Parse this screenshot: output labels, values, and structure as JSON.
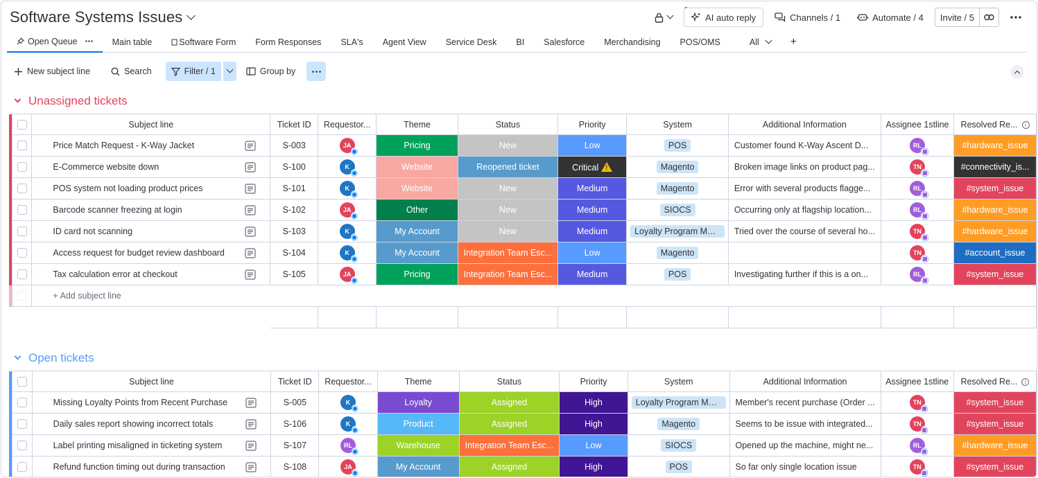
{
  "board": {
    "title": "Software Systems Issues"
  },
  "top_actions": {
    "ai_auto_reply": "AI auto reply",
    "channels": "Channels / 1",
    "automate": "Automate / 4",
    "invite": "Invite / 5"
  },
  "tabs": [
    {
      "label": "Open Queue",
      "active": true
    },
    {
      "label": "Main table"
    },
    {
      "label": "Software Form"
    },
    {
      "label": "Form Responses"
    },
    {
      "label": "SLA's"
    },
    {
      "label": "Agent View"
    },
    {
      "label": "Service Desk"
    },
    {
      "label": "BI"
    },
    {
      "label": "Salesforce"
    },
    {
      "label": "Merchandising"
    },
    {
      "label": "POS/OMS"
    },
    {
      "label": "All"
    }
  ],
  "toolbar": {
    "new_item": "New subject line",
    "search": "Search",
    "filter": "Filter / 1",
    "group_by": "Group by"
  },
  "columns": [
    "Subject line",
    "Ticket ID",
    "Requestor...",
    "Theme",
    "Status",
    "Priority",
    "System",
    "Additional Information",
    "Assignee 1stline",
    "Resolved Re..."
  ],
  "colors": {
    "Pricing": "#00a25b",
    "Website": "#f9a8a0",
    "Other": "#037f4c",
    "My Account": "#579bcc",
    "Loyalty": "#784bd1",
    "Product": "#56b9f7",
    "Warehouse": "#9cd326",
    "New": "#c4c4c4",
    "Reopened ticket": "#579bcc",
    "Integration Team Esc...": "#fd6f3b",
    "Assigned": "#9cd326",
    "Low": "#579bff",
    "Critical": "#333333",
    "Medium": "#5559df",
    "High": "#401694",
    "#hardware_issue": "#ff9c24",
    "#connectivity_is...": "#333333",
    "#system_issue": "#e2445c",
    "#account_issue": "#1f6dc2"
  },
  "groups": [
    {
      "title": "Unassigned tickets",
      "color": "#e2445c",
      "add_label": "+ Add subject line",
      "rows": [
        {
          "subject": "Price Match Request - K-Way Jacket",
          "id": "S-003",
          "req": "JA",
          "req_color": "#e2445c",
          "theme": "Pricing",
          "status": "New",
          "priority": "Low",
          "system": "POS",
          "info": "Customer found K-Way Ascent D...",
          "assignee": "RL",
          "as_color": "#a25ddc",
          "resolved": "#hardware_issue"
        },
        {
          "subject": "E-Commerce website down",
          "id": "S-100",
          "req": "K",
          "req_color": "#1f76c2",
          "theme": "Website",
          "status": "Reopened ticket",
          "priority": "Critical",
          "system": "Magento",
          "info": "Broken image links on product pag...",
          "assignee": "TN",
          "as_color": "#e2445c",
          "resolved": "#connectivity_is..."
        },
        {
          "subject": "POS system not loading product prices",
          "id": "S-101",
          "req": "K",
          "req_color": "#1f76c2",
          "theme": "Website",
          "status": "New",
          "priority": "Medium",
          "system": "Magento",
          "info": "Error with several products flagge...",
          "assignee": "RL",
          "as_color": "#a25ddc",
          "resolved": "#system_issue"
        },
        {
          "subject": "Barcode scanner freezing at login",
          "id": "S-102",
          "req": "JA",
          "req_color": "#e2445c",
          "theme": "Other",
          "status": "New",
          "priority": "Medium",
          "system": "SIOCS",
          "info": "Occurring only at flagship location...",
          "assignee": "RL",
          "as_color": "#a25ddc",
          "resolved": "#hardware_issue"
        },
        {
          "subject": "ID card not scanning",
          "id": "S-103",
          "req": "K",
          "req_color": "#1f76c2",
          "theme": "My Account",
          "status": "New",
          "priority": "Medium",
          "system": "Loyalty Program Man...",
          "info": "Tried over the course of several ho...",
          "assignee": "TN",
          "as_color": "#e2445c",
          "resolved": "#hardware_issue"
        },
        {
          "subject": "Access request for budget review dashboard",
          "id": "S-104",
          "req": "K",
          "req_color": "#1f76c2",
          "theme": "My Account",
          "status": "Integration Team Esc...",
          "priority": "Low",
          "system": "Magento",
          "info": "",
          "assignee": "TN",
          "as_color": "#e2445c",
          "resolved": "#account_issue"
        },
        {
          "subject": "Tax calculation error at checkout",
          "id": "S-105",
          "req": "JA",
          "req_color": "#e2445c",
          "theme": "Pricing",
          "status": "Integration Team Esc...",
          "priority": "Medium",
          "system": "POS",
          "info": "Investigating further if this is a on...",
          "assignee": "RL",
          "as_color": "#a25ddc",
          "resolved": "#system_issue"
        }
      ]
    },
    {
      "title": "Open tickets",
      "color": "#579bfc",
      "rows": [
        {
          "subject": "Missing Loyalty Points from Recent Purchase",
          "id": "S-005",
          "req": "K",
          "req_color": "#1f76c2",
          "theme": "Loyalty",
          "status": "Assigned",
          "priority": "High",
          "system": "Loyalty Program Man...",
          "info": "Member's recent purchase (Order ...",
          "assignee": "TN",
          "as_color": "#e2445c",
          "resolved": "#system_issue"
        },
        {
          "subject": "Daily sales report showing incorrect totals",
          "id": "S-106",
          "req": "K",
          "req_color": "#1f76c2",
          "theme": "Product",
          "status": "Assigned",
          "priority": "High",
          "system": "Magento",
          "info": "Seems to be issue with integrated...",
          "assignee": "TN",
          "as_color": "#e2445c",
          "resolved": "#system_issue"
        },
        {
          "subject": "Label printing misaligned in ticketing system",
          "id": "S-107",
          "req": "RL",
          "req_color": "#a25ddc",
          "theme": "Warehouse",
          "status": "Integration Team Esc...",
          "priority": "Low",
          "system": "SIOCS",
          "info": "Opened up the machine, might ne...",
          "assignee": "RL",
          "as_color": "#a25ddc",
          "resolved": "#hardware_issue"
        },
        {
          "subject": "Refund function timing out during transaction",
          "id": "S-108",
          "req": "JA",
          "req_color": "#e2445c",
          "theme": "My Account",
          "status": "Assigned",
          "priority": "High",
          "system": "POS",
          "info": "So far only single location issue",
          "assignee": "TN",
          "as_color": "#e2445c",
          "resolved": "#system_issue"
        }
      ]
    }
  ]
}
